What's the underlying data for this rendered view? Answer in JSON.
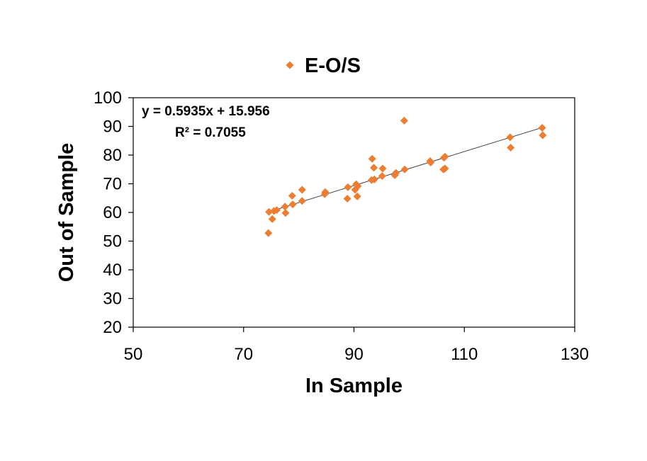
{
  "chart_data": {
    "type": "scatter",
    "xlabel": "In Sample",
    "ylabel": "Out of Sample",
    "xlim": [
      50,
      130
    ],
    "ylim": [
      20,
      100
    ],
    "xticks": [
      "50",
      "70",
      "90",
      "110",
      "130"
    ],
    "yticks": [
      "20",
      "30",
      "40",
      "50",
      "60",
      "70",
      "80",
      "90",
      "100"
    ],
    "grid": false,
    "legend_position": "top-center",
    "series": [
      {
        "name": "E-O/S",
        "color": "#ED7D31",
        "marker": "diamond",
        "points": [
          {
            "x": 74.5,
            "y": 52.8
          },
          {
            "x": 74.6,
            "y": 60.2
          },
          {
            "x": 75.2,
            "y": 57.7
          },
          {
            "x": 75.5,
            "y": 60.5
          },
          {
            "x": 76.0,
            "y": 60.8
          },
          {
            "x": 77.5,
            "y": 62.0
          },
          {
            "x": 77.6,
            "y": 59.8
          },
          {
            "x": 78.8,
            "y": 65.8
          },
          {
            "x": 78.9,
            "y": 62.8
          },
          {
            "x": 80.6,
            "y": 64.0
          },
          {
            "x": 80.6,
            "y": 67.9
          },
          {
            "x": 84.7,
            "y": 66.4
          },
          {
            "x": 84.8,
            "y": 67.1
          },
          {
            "x": 88.8,
            "y": 64.8
          },
          {
            "x": 88.9,
            "y": 68.8
          },
          {
            "x": 90.2,
            "y": 67.9
          },
          {
            "x": 90.4,
            "y": 69.8
          },
          {
            "x": 90.6,
            "y": 65.6
          },
          {
            "x": 90.7,
            "y": 69.2
          },
          {
            "x": 93.2,
            "y": 71.3
          },
          {
            "x": 93.3,
            "y": 78.7
          },
          {
            "x": 93.6,
            "y": 75.6
          },
          {
            "x": 93.7,
            "y": 71.5
          },
          {
            "x": 95.1,
            "y": 72.7
          },
          {
            "x": 95.2,
            "y": 75.3
          },
          {
            "x": 97.4,
            "y": 73.0
          },
          {
            "x": 97.6,
            "y": 73.8
          },
          {
            "x": 99.1,
            "y": 92.0
          },
          {
            "x": 99.2,
            "y": 75.0
          },
          {
            "x": 103.8,
            "y": 77.9
          },
          {
            "x": 103.9,
            "y": 77.4
          },
          {
            "x": 106.2,
            "y": 75.0
          },
          {
            "x": 106.3,
            "y": 79.1
          },
          {
            "x": 106.5,
            "y": 79.4
          },
          {
            "x": 106.5,
            "y": 75.3
          },
          {
            "x": 118.3,
            "y": 86.2
          },
          {
            "x": 118.4,
            "y": 82.6
          },
          {
            "x": 124.1,
            "y": 89.5
          },
          {
            "x": 124.2,
            "y": 86.9
          }
        ]
      }
    ],
    "trendline": {
      "type": "linear",
      "slope": 0.5935,
      "intercept": 15.956,
      "x_range": [
        74.5,
        124.2
      ],
      "color": "#404040",
      "equation_label": "y = 0.5935x + 15.956",
      "r2_label": "R² = 0.7055"
    }
  }
}
